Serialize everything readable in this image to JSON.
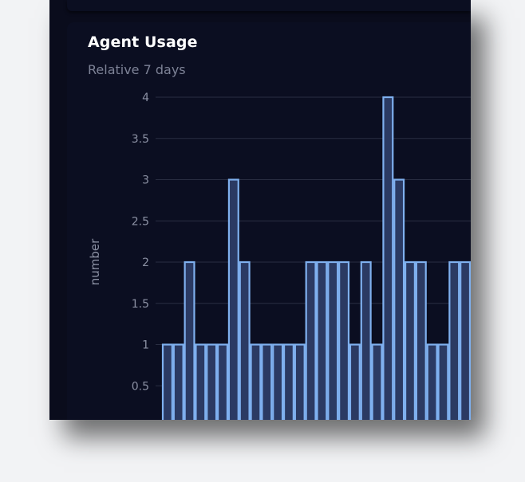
{
  "card": {
    "title": "Agent Usage",
    "subtitle": "Relative 7 days"
  },
  "chart_data": {
    "type": "bar",
    "title": "Agent Usage",
    "subtitle": "Relative 7 days",
    "xlabel": "",
    "ylabel": "number",
    "ylim": [
      0,
      4
    ],
    "yticks": [
      "0.5",
      "1",
      "1.5",
      "2",
      "2.5",
      "3",
      "3.5",
      "4"
    ],
    "grid": true,
    "values": [
      1,
      1,
      2,
      1,
      1,
      1,
      3,
      2,
      1,
      1,
      1,
      1,
      1,
      2,
      2,
      2,
      2,
      1,
      2,
      1,
      4,
      3,
      2,
      2,
      1,
      1,
      2,
      2
    ],
    "colors": {
      "bar_fill": "#2b3a63",
      "bar_stroke": "#7fb0ef",
      "grid": "#2a2e42",
      "text": "#8b90a3"
    }
  }
}
